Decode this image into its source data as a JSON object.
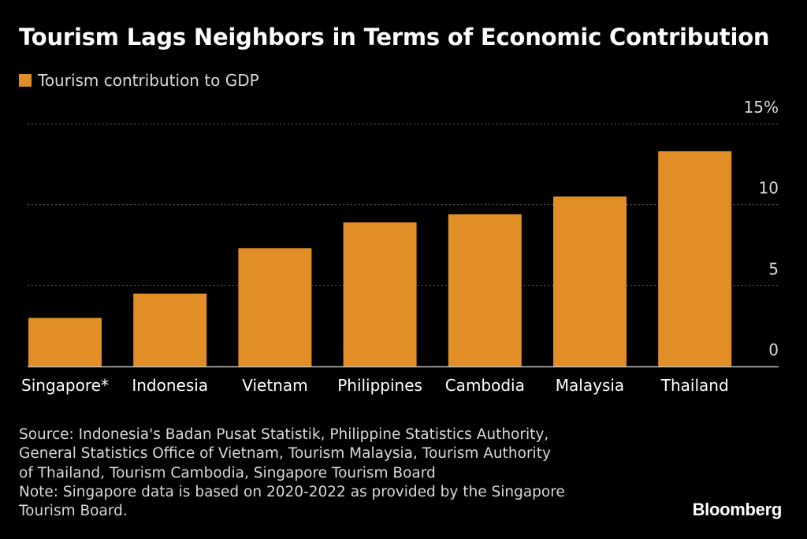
{
  "header": {
    "title": "Tourism Lags Neighbors in Terms of Economic Contribution"
  },
  "legend": {
    "label": "Tourism contribution to GDP"
  },
  "colors": {
    "background": "#000000",
    "bar": "#e08e25",
    "gridline": "#5e5e5e",
    "axis": "#bfbfbf",
    "text": "#ffffff",
    "muted_text": "#d9d9d9"
  },
  "chart_data": {
    "type": "bar",
    "categories": [
      "Singapore*",
      "Indonesia",
      "Vietnam",
      "Philippines",
      "Cambodia",
      "Malaysia",
      "Thailand"
    ],
    "series": [
      {
        "name": "Tourism contribution to GDP",
        "values": [
          3.0,
          4.5,
          7.3,
          8.9,
          9.4,
          10.5,
          13.3
        ]
      }
    ],
    "y_ticks": [
      "0",
      "5",
      "10",
      "15%"
    ],
    "y_tick_values": [
      0,
      5,
      10,
      15
    ],
    "ylim": [
      0,
      15
    ],
    "grid": true,
    "y_axis_side": "right",
    "legend_position": "top-left"
  },
  "footer": {
    "source_lines": [
      "Source: Indonesia's Badan Pusat Statistik, Philippine Statistics Authority,",
      "General Statistics Office of Vietnam, Tourism Malaysia, Tourism Authority",
      "of Thailand, Tourism Cambodia, Singapore Tourism Board",
      "Note: Singapore data is based on 2020-2022 as provided by the Singapore",
      "Tourism Board."
    ]
  },
  "branding": {
    "logo": "Bloomberg"
  }
}
